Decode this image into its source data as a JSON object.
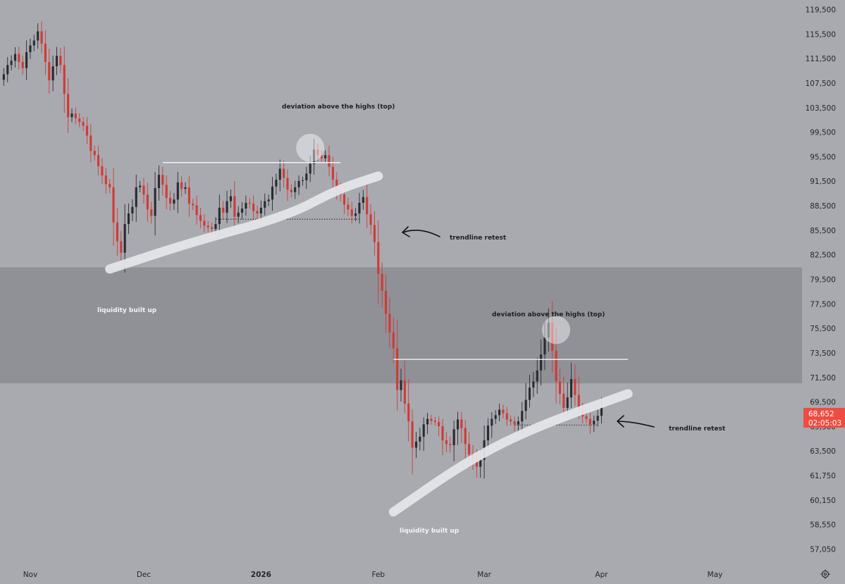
{
  "colors": {
    "background": "#a8aab0",
    "zone": "#8f9197",
    "candle_up": "#2a2b30",
    "candle_down": "#d03a34",
    "trendline": "#e6e7ea",
    "level_line": "#f2f2f4",
    "price_tag": "#ee4c41",
    "axis_text": "#24262b",
    "annotation_dark": "#1e1f24",
    "annotation_light": "#f3f3f5"
  },
  "chart_data": {
    "type": "candlestick",
    "title": "",
    "xlabel": "",
    "ylabel": "",
    "ylim": [
      54500,
      120500
    ],
    "y_ticks": [
      "119,500",
      "115,500",
      "111,500",
      "107,500",
      "103,500",
      "99,500",
      "95,500",
      "91,500",
      "88,500",
      "85,500",
      "82,500",
      "79,500",
      "77,500",
      "75,500",
      "73,500",
      "71,500",
      "69,500",
      "65,500",
      "63,500",
      "61,750",
      "60,150",
      "58,550",
      "57,050"
    ],
    "y_tick_values": [
      119500,
      115500,
      111500,
      107500,
      103500,
      99500,
      95500,
      91500,
      88500,
      85500,
      82500,
      79500,
      77500,
      75500,
      73500,
      71500,
      69500,
      65500,
      63500,
      61750,
      60150,
      58550,
      57050
    ],
    "x_ticks": [
      "Nov",
      "Dec",
      "2026",
      "Feb",
      "Mar",
      "Apr",
      "May"
    ],
    "x_tick_dates": [
      "2025-11-01",
      "2025-12-01",
      "2026-01-01",
      "2026-02-01",
      "2026-03-01",
      "2026-04-01",
      "2026-05-01"
    ],
    "x_range": [
      "2025-10-24",
      "2026-05-24"
    ],
    "series": [
      {
        "x": [
          "2025-10-25",
          "2025-10-26",
          "2025-10-27",
          "2025-10-28",
          "2025-10-29",
          "2025-10-30",
          "2025-10-31",
          "2025-11-01",
          "2025-11-02",
          "2025-11-03",
          "2025-11-04",
          "2025-11-05",
          "2025-11-06",
          "2025-11-07",
          "2025-11-08",
          "2025-11-09",
          "2025-11-10",
          "2025-11-11",
          "2025-11-12",
          "2025-11-13",
          "2025-11-14",
          "2025-11-15",
          "2025-11-16",
          "2025-11-17",
          "2025-11-18",
          "2025-11-19",
          "2025-11-20",
          "2025-11-21",
          "2025-11-22",
          "2025-11-23",
          "2025-11-24",
          "2025-11-25",
          "2025-11-26",
          "2025-11-27",
          "2025-11-28",
          "2025-11-29",
          "2025-11-30",
          "2025-12-01",
          "2025-12-02",
          "2025-12-03",
          "2025-12-04",
          "2025-12-05",
          "2025-12-06",
          "2025-12-07",
          "2025-12-08",
          "2025-12-09",
          "2025-12-10",
          "2025-12-11",
          "2025-12-12",
          "2025-12-13",
          "2025-12-14",
          "2025-12-15",
          "2025-12-16",
          "2025-12-17",
          "2025-12-18",
          "2025-12-19",
          "2025-12-20",
          "2025-12-21",
          "2025-12-22",
          "2025-12-23",
          "2025-12-24",
          "2025-12-25",
          "2025-12-26",
          "2025-12-27",
          "2025-12-28",
          "2025-12-29",
          "2025-12-30",
          "2025-12-31",
          "2026-01-01",
          "2026-01-02",
          "2026-01-03",
          "2026-01-04",
          "2026-01-05",
          "2026-01-06",
          "2026-01-07",
          "2026-01-08",
          "2026-01-09",
          "2026-01-10",
          "2026-01-11",
          "2026-01-12",
          "2026-01-13",
          "2026-01-14",
          "2026-01-15",
          "2026-01-16",
          "2026-01-17",
          "2026-01-18",
          "2026-01-19",
          "2026-01-20",
          "2026-01-21",
          "2026-01-22",
          "2026-01-23",
          "2026-01-24",
          "2026-01-25",
          "2026-01-26",
          "2026-01-27",
          "2026-01-28",
          "2026-01-29",
          "2026-01-30",
          "2026-01-31",
          "2026-02-01",
          "2026-02-02",
          "2026-02-03",
          "2026-02-04",
          "2026-02-05",
          "2026-02-06",
          "2026-02-07",
          "2026-02-08",
          "2026-02-09",
          "2026-02-10",
          "2026-02-11",
          "2026-02-12",
          "2026-02-13",
          "2026-02-14",
          "2026-02-15",
          "2026-02-16",
          "2026-02-17",
          "2026-02-18",
          "2026-02-19",
          "2026-02-20",
          "2026-02-21",
          "2026-02-22",
          "2026-02-23",
          "2026-02-24",
          "2026-02-25",
          "2026-02-26",
          "2026-02-27",
          "2026-02-28",
          "2026-03-01",
          "2026-03-02",
          "2026-03-03",
          "2026-03-04",
          "2026-03-05",
          "2026-03-06",
          "2026-03-07",
          "2026-03-08",
          "2026-03-09",
          "2026-03-10",
          "2026-03-11",
          "2026-03-12",
          "2026-03-13",
          "2026-03-14",
          "2026-03-15",
          "2026-03-16",
          "2026-03-17",
          "2026-03-18",
          "2026-03-19",
          "2026-03-20",
          "2026-03-21",
          "2026-03-22",
          "2026-03-23",
          "2026-03-24",
          "2026-03-25",
          "2026-03-26",
          "2026-03-27",
          "2026-03-28",
          "2026-03-29",
          "2026-03-30",
          "2026-03-31",
          "2026-04-01"
        ],
        "close": [
          109000,
          110500,
          111200,
          112300,
          111000,
          110000,
          112600,
          113700,
          114500,
          116000,
          114000,
          111000,
          108000,
          110300,
          112000,
          110500,
          105800,
          102000,
          102600,
          101800,
          101200,
          100600,
          99000,
          96500,
          95800,
          94000,
          92500,
          91200,
          90800,
          86500,
          84200,
          82800,
          86300,
          87600,
          88400,
          90800,
          91000,
          89900,
          88100,
          87300,
          90700,
          92600,
          91100,
          89500,
          88800,
          89300,
          91400,
          90600,
          90800,
          88800,
          88600,
          87400,
          86700,
          86100,
          85900,
          85700,
          86300,
          88300,
          87700,
          89100,
          89700,
          87200,
          87700,
          88200,
          88900,
          88800,
          87900,
          87600,
          88300,
          89100,
          89300,
          90900,
          91800,
          93600,
          92100,
          90500,
          90200,
          90800,
          91600,
          91700,
          92800,
          94400,
          96700,
          95800,
          95300,
          95800,
          93900,
          91800,
          90500,
          89900,
          88700,
          88100,
          87300,
          87600,
          88900,
          89600,
          87500,
          86200,
          84100,
          80200,
          78600,
          76700,
          75200,
          73900,
          70500,
          71300,
          69300,
          66400,
          63800,
          64300,
          64700,
          65900,
          66800,
          66500,
          66300,
          65600,
          64400,
          64100,
          64000,
          65300,
          66700,
          65400,
          64100,
          63300,
          62900,
          62400,
          62900,
          64400,
          65700,
          66800,
          67400,
          68300,
          67700,
          66700,
          66400,
          65900,
          66400,
          68100,
          69700,
          70700,
          71200,
          72100,
          73400,
          74800,
          76000,
          73700,
          71200,
          70200,
          68600,
          69900,
          71400,
          70100,
          68300,
          67200,
          66800,
          65900,
          66500,
          67300,
          68652
        ]
      }
    ],
    "shaded_range": [
      71050,
      81000
    ],
    "horizontal_levels": [
      {
        "price": 94600,
        "from": "2025-12-06",
        "to": "2026-01-22"
      },
      {
        "price": 73000,
        "from": "2026-02-05",
        "to": "2026-04-08"
      }
    ],
    "dotted_levels": [
      {
        "price": 86900,
        "from": "2025-12-20",
        "to": "2026-01-27"
      },
      {
        "price": 65800,
        "from": "2026-03-09",
        "to": "2026-03-31"
      }
    ],
    "trendlines": [
      {
        "points": [
          [
            "2025-11-22",
            80800
          ],
          [
            "2025-12-13",
            84000
          ],
          [
            "2026-01-08",
            87300
          ],
          [
            "2026-01-21",
            90500
          ],
          [
            "2026-02-01",
            92400
          ]
        ]
      },
      {
        "points": [
          [
            "2026-02-05",
            59400
          ],
          [
            "2026-02-25",
            62900
          ],
          [
            "2026-03-15",
            65600
          ],
          [
            "2026-04-08",
            70200
          ]
        ]
      }
    ],
    "circles": [
      {
        "date": "2026-01-14",
        "price": 97000
      },
      {
        "date": "2026-03-20",
        "price": 75400
      }
    ],
    "current_price": "68,652",
    "countdown": "02:05:03"
  },
  "annotations": {
    "top_label_1": "deviation above the highs (top)",
    "top_label_2": "deviation above the highs (top)",
    "retest_label_1": "trendline retest",
    "retest_label_2": "trendline retest",
    "liquidity_label_1": "liquidity built up",
    "liquidity_label_2": "liquidity built up"
  },
  "icons": {
    "settings": "gear-icon"
  }
}
